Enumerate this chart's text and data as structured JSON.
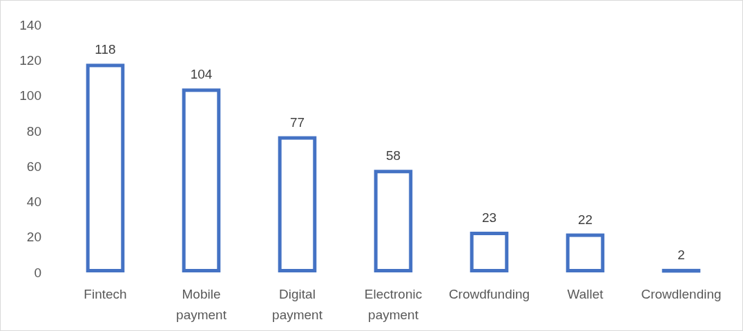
{
  "chart_data": {
    "type": "bar",
    "categories": [
      "Fintech",
      "Mobile payment",
      "Digital payment",
      "Electronic payment",
      "Crowdfunding",
      "Wallet",
      "Crowdlending"
    ],
    "values": [
      118,
      104,
      77,
      58,
      23,
      22,
      2
    ],
    "color": "#4472c4",
    "ylim": [
      0,
      140
    ],
    "yticks": [
      0,
      20,
      40,
      60,
      80,
      100,
      120,
      140
    ],
    "data_labels": true
  }
}
